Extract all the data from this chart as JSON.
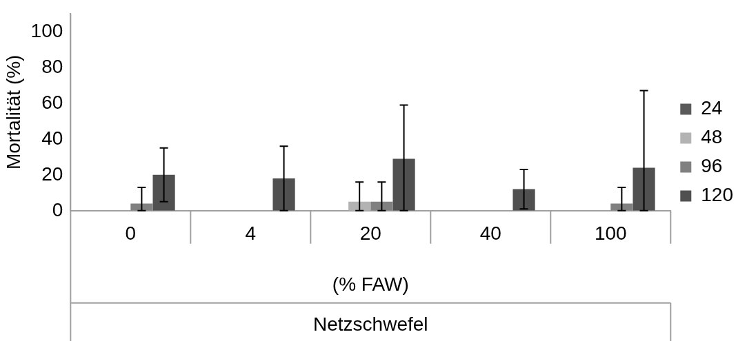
{
  "chart_data": {
    "type": "bar",
    "categories": [
      "0",
      "4",
      "20",
      "40",
      "100"
    ],
    "series": [
      {
        "name": "24",
        "color": "#5a5a5a",
        "values": [
          0,
          0,
          0,
          0,
          0
        ]
      },
      {
        "name": "48",
        "color": "#b3b3b3",
        "values": [
          0,
          0,
          5,
          0,
          0
        ],
        "errors": [
          null,
          null,
          [
            0,
            16
          ],
          null,
          null
        ]
      },
      {
        "name": "96",
        "color": "#808080",
        "values": [
          4,
          0,
          5,
          0,
          4
        ],
        "errors": [
          [
            0,
            13
          ],
          null,
          [
            0,
            16
          ],
          null,
          [
            0,
            13
          ]
        ]
      },
      {
        "name": "120",
        "color": "#505050",
        "values": [
          20,
          18,
          29,
          12,
          24
        ],
        "errors": [
          15,
          18,
          [
            0,
            59
          ],
          11,
          [
            0,
            67
          ]
        ]
      }
    ],
    "ylabel": "Mortalität (%)",
    "xlabel": "(% FAW)",
    "annotations": [
      "Netzschwefel"
    ],
    "ylim": [
      0,
      110
    ],
    "yticks": [
      0,
      20,
      40,
      60,
      80,
      100
    ],
    "grid": false,
    "legend": "right"
  }
}
